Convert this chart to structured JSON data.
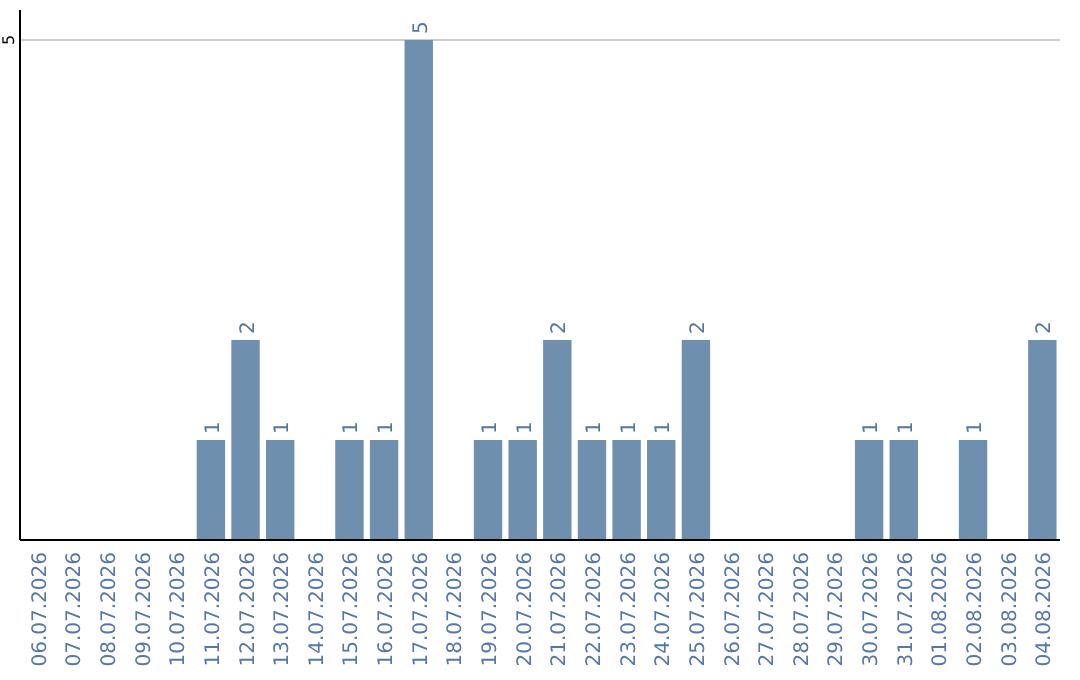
{
  "chart_data": {
    "type": "bar",
    "categories": [
      "06.07.2026",
      "07.07.2026",
      "08.07.2026",
      "09.07.2026",
      "10.07.2026",
      "11.07.2026",
      "12.07.2026",
      "13.07.2026",
      "14.07.2026",
      "15.07.2026",
      "16.07.2026",
      "17.07.2026",
      "18.07.2026",
      "19.07.2026",
      "20.07.2026",
      "21.07.2026",
      "22.07.2026",
      "23.07.2026",
      "24.07.2026",
      "25.07.2026",
      "26.07.2026",
      "27.07.2026",
      "28.07.2026",
      "29.07.2026",
      "30.07.2026",
      "31.07.2026",
      "01.08.2026",
      "02.08.2026",
      "03.08.2026",
      "04.08.2026"
    ],
    "values": [
      0,
      0,
      0,
      0,
      0,
      1,
      2,
      1,
      0,
      1,
      1,
      5,
      0,
      1,
      1,
      2,
      1,
      1,
      1,
      2,
      0,
      0,
      0,
      0,
      1,
      1,
      0,
      1,
      0,
      2
    ],
    "value_labels": [
      null,
      null,
      null,
      null,
      null,
      "1",
      "2",
      "1",
      null,
      "1",
      "1",
      "5",
      null,
      "1",
      "1",
      "2",
      "1",
      "1",
      "1",
      "2",
      null,
      null,
      null,
      null,
      "1",
      "1",
      null,
      "1",
      null,
      "2"
    ],
    "color": "#6f8fae",
    "ylim": [
      0,
      5.3
    ],
    "yticks": [
      5
    ],
    "grid": "y"
  }
}
